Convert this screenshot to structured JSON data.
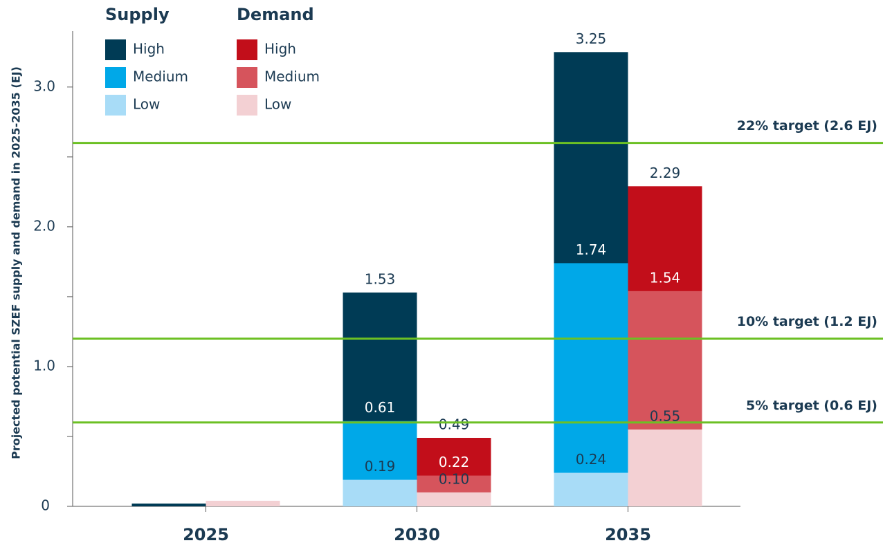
{
  "chart_data": {
    "type": "overlapping-bar",
    "y_label": "Projected potential SZEF supply and demand in 2025-2035 (EJ)",
    "categories": [
      "2025",
      "2030",
      "2035"
    ],
    "legend_groups": [
      "Supply",
      "Demand"
    ],
    "series": [
      {
        "name": "High",
        "group": "Supply",
        "color": "#003b55",
        "label_color": "#1b3a52",
        "values": [
          0.02,
          1.53,
          3.25
        ],
        "value_labels": [
          null,
          "1.53",
          "3.25"
        ]
      },
      {
        "name": "Medium",
        "group": "Supply",
        "color": "#00a8e8",
        "label_color": "#ffffff",
        "values": [
          null,
          0.61,
          1.74
        ],
        "value_labels": [
          null,
          "0.61",
          "1.74"
        ]
      },
      {
        "name": "Low",
        "group": "Supply",
        "color": "#a8dcf7",
        "label_color": "#1b3a52",
        "values": [
          null,
          0.19,
          0.24
        ],
        "value_labels": [
          null,
          "0.19",
          "0.24"
        ]
      },
      {
        "name": "High",
        "group": "Demand",
        "color": "#c20e1a",
        "label_color": "#1b3a52",
        "values": [
          null,
          0.49,
          2.29
        ],
        "value_labels": [
          null,
          "0.49",
          "2.29"
        ]
      },
      {
        "name": "Medium",
        "group": "Demand",
        "color": "#d6545c",
        "label_color": "#ffffff",
        "values": [
          null,
          0.22,
          1.54
        ],
        "value_labels": [
          null,
          "0.22",
          "1.54"
        ]
      },
      {
        "name": "Low",
        "group": "Demand",
        "color": "#f3d0d3",
        "label_color": "#1b3a52",
        "values": [
          0.04,
          0.1,
          0.55
        ],
        "value_labels": [
          null,
          "0.10",
          "0.55"
        ]
      }
    ],
    "ylim": [
      0,
      3.4
    ],
    "yticks": [
      0,
      {
        "value": 1,
        "label": "1.0"
      },
      {
        "value": 2,
        "label": "2.0"
      },
      {
        "value": 3,
        "label": "3.0"
      }
    ],
    "yminorticks": [
      0.5,
      1.5,
      2.5
    ],
    "reference_lines": [
      {
        "value": 2.6,
        "label": "22% target (2.6 EJ)"
      },
      {
        "value": 1.2,
        "label": "10% target (1.2 EJ)"
      },
      {
        "value": 0.6,
        "label": "5% target (0.6 EJ)"
      }
    ],
    "reference_color": "#6cc024"
  }
}
